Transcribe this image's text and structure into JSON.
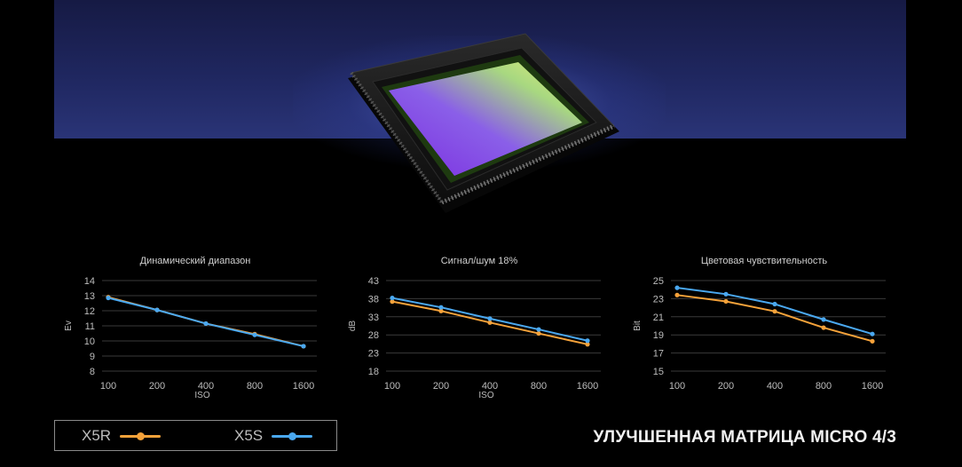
{
  "colors": {
    "x5r": "#f5a23a",
    "x5s": "#4aa8f0",
    "grid": "#3a3a3a",
    "tick_text": "#bdbdbd"
  },
  "legend": {
    "items": [
      {
        "label": "X5R",
        "color": "#f5a23a"
      },
      {
        "label": "X5S",
        "color": "#4aa8f0"
      }
    ]
  },
  "headline": "УЛУЧШЕННАЯ МАТРИЦА MICRO 4/3",
  "chart_data": [
    {
      "type": "line",
      "title": "Динамический диапазон",
      "xlabel": "ISO",
      "ylabel": "Ev",
      "categories": [
        "100",
        "200",
        "400",
        "800",
        "1600"
      ],
      "yticks": [
        8,
        9,
        10,
        11,
        12,
        13,
        14
      ],
      "ylim": [
        8,
        14
      ],
      "grid": true,
      "series": [
        {
          "name": "X5R",
          "color": "#f5a23a",
          "values": [
            12.9,
            12.05,
            11.15,
            10.45,
            9.65
          ]
        },
        {
          "name": "X5S",
          "color": "#4aa8f0",
          "values": [
            12.85,
            12.05,
            11.15,
            10.4,
            9.65
          ]
        }
      ]
    },
    {
      "type": "line",
      "title": "Сигнал/шум 18%",
      "xlabel": "ISO",
      "ylabel": "dB",
      "categories": [
        "100",
        "200",
        "400",
        "800",
        "1600"
      ],
      "yticks": [
        18,
        23,
        28,
        33,
        38,
        43
      ],
      "ylim": [
        18,
        43
      ],
      "grid": true,
      "series": [
        {
          "name": "X5R",
          "color": "#f5a23a",
          "values": [
            37.2,
            34.6,
            31.4,
            28.4,
            25.4
          ]
        },
        {
          "name": "X5S",
          "color": "#4aa8f0",
          "values": [
            38.2,
            35.6,
            32.5,
            29.5,
            26.4
          ]
        }
      ]
    },
    {
      "type": "line",
      "title": "Цветовая чувствительность",
      "xlabel": "",
      "ylabel": "Bit",
      "categories": [
        "100",
        "200",
        "400",
        "800",
        "1600"
      ],
      "yticks": [
        15,
        17,
        19,
        21,
        23,
        25
      ],
      "ylim": [
        15,
        25
      ],
      "grid": true,
      "series": [
        {
          "name": "X5R",
          "color": "#f5a23a",
          "values": [
            23.4,
            22.7,
            21.6,
            19.8,
            18.3
          ]
        },
        {
          "name": "X5S",
          "color": "#4aa8f0",
          "values": [
            24.2,
            23.5,
            22.4,
            20.7,
            19.1
          ]
        }
      ]
    }
  ]
}
